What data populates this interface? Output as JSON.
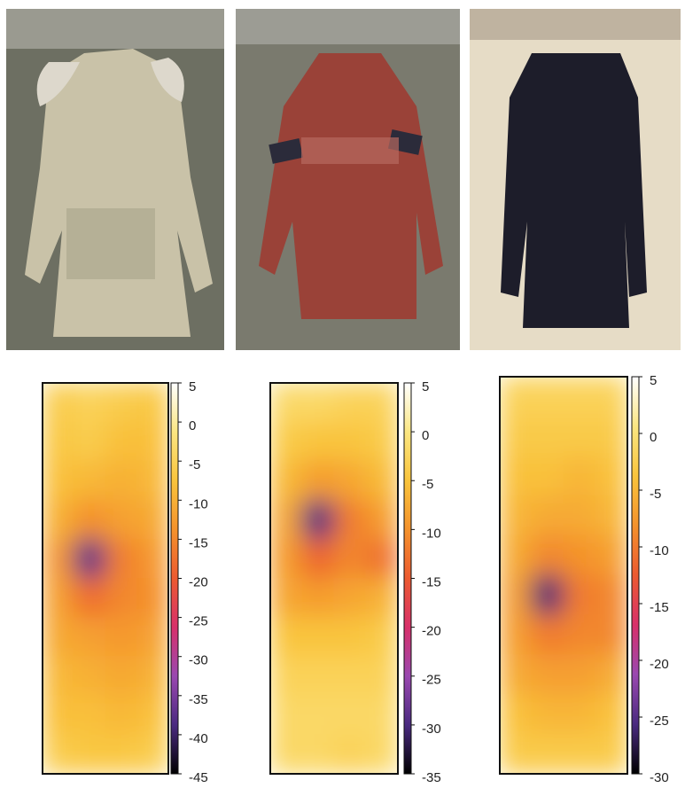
{
  "chart_data": [
    {
      "type": "heatmap",
      "clim": [
        -45,
        5
      ],
      "ticks": [
        5,
        0,
        -5,
        -10,
        -15,
        -20,
        -25,
        -30,
        -35,
        -40,
        -45
      ],
      "colormap": [
        "#000000",
        "#4a2a80",
        "#9a48b0",
        "#d8306a",
        "#ec5a30",
        "#f4922c",
        "#f9c43c",
        "#fbe682",
        "#ffffff"
      ],
      "values": [
        [
          -6,
          -5,
          -6,
          -7
        ],
        [
          -7,
          -6,
          -8,
          -8
        ],
        [
          -8,
          -9,
          -10,
          -9
        ],
        [
          -10,
          -14,
          -12,
          -11
        ],
        [
          -13,
          -38,
          -16,
          -13
        ],
        [
          -12,
          -18,
          -15,
          -14
        ],
        [
          -11,
          -12,
          -13,
          -12
        ],
        [
          -9,
          -10,
          -11,
          -10
        ],
        [
          -8,
          -8,
          -9,
          -8
        ],
        [
          -6,
          -7,
          -7,
          -6
        ]
      ]
    },
    {
      "type": "heatmap",
      "clim": [
        -35,
        5
      ],
      "ticks": [
        5,
        0,
        -5,
        -10,
        -15,
        -20,
        -25,
        -30,
        -35
      ],
      "colormap": [
        "#000000",
        "#4a2a80",
        "#9a48b0",
        "#d8306a",
        "#ec5a30",
        "#f4922c",
        "#f9c43c",
        "#fbe682",
        "#ffffff"
      ],
      "values": [
        [
          -2,
          -2,
          -3,
          -3
        ],
        [
          -4,
          -5,
          -5,
          -4
        ],
        [
          -6,
          -9,
          -8,
          -6
        ],
        [
          -8,
          -30,
          -12,
          -9
        ],
        [
          -9,
          -14,
          -11,
          -13
        ],
        [
          -8,
          -9,
          -8,
          -7
        ],
        [
          -5,
          -5,
          -5,
          -4
        ],
        [
          -3,
          -3,
          -3,
          -3
        ],
        [
          -2,
          -2,
          -2,
          -2
        ],
        [
          -2,
          -2,
          -3,
          -2
        ]
      ]
    },
    {
      "type": "heatmap",
      "clim": [
        -30,
        5
      ],
      "ticks": [
        5,
        0,
        -5,
        -10,
        -15,
        -20,
        -25,
        -30
      ],
      "colormap": [
        "#000000",
        "#4a2a80",
        "#9a48b0",
        "#d8306a",
        "#ec5a30",
        "#f4922c",
        "#f9c43c",
        "#fbe682",
        "#ffffff"
      ],
      "values": [
        [
          -2,
          -2,
          -2,
          -2
        ],
        [
          -3,
          -3,
          -3,
          -3
        ],
        [
          -4,
          -4,
          -5,
          -4
        ],
        [
          -5,
          -6,
          -6,
          -5
        ],
        [
          -6,
          -9,
          -8,
          -7
        ],
        [
          -7,
          -26,
          -10,
          -9
        ],
        [
          -7,
          -10,
          -9,
          -9
        ],
        [
          -6,
          -7,
          -7,
          -6
        ],
        [
          -4,
          -5,
          -5,
          -4
        ],
        [
          -3,
          -3,
          -3,
          -3
        ]
      ]
    }
  ]
}
